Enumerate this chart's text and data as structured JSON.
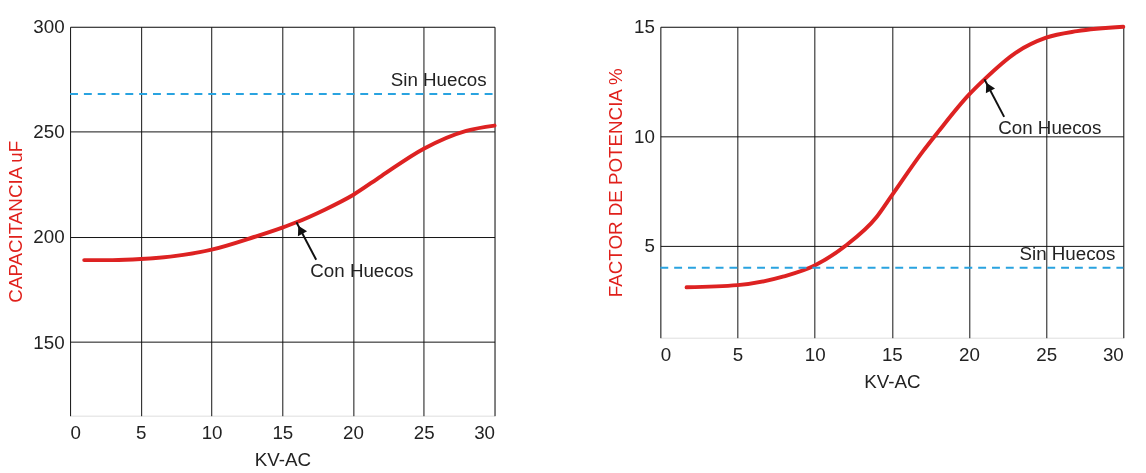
{
  "chart_data": [
    {
      "type": "line",
      "xlabel": "KV-AC",
      "ylabel": "CAPACITANCIA uF",
      "xlim": [
        0,
        30
      ],
      "ylim": [
        115,
        300
      ],
      "xticks": [
        0,
        5,
        10,
        15,
        20,
        25,
        30
      ],
      "yticks": [
        150,
        200,
        250,
        300
      ],
      "grid": true,
      "marker": "none",
      "line_style": "solid",
      "series": [
        {
          "color": "#dd2222",
          "x": [
            1,
            3,
            5,
            8,
            10,
            13,
            15,
            16,
            18,
            20,
            22,
            25,
            28,
            30
          ],
          "values": [
            189,
            189,
            189.5,
            191.5,
            194,
            200,
            204.5,
            207,
            213,
            220,
            229,
            242,
            250.5,
            253
          ]
        }
      ],
      "ref_lines": [
        {
          "axis": "y",
          "value": 268,
          "label": "Sin Huecos",
          "color": "#29a3e0",
          "line_style": "dashed"
        }
      ],
      "annotations": [
        {
          "text": "Con Huecos",
          "x": 16,
          "y": 207
        }
      ]
    },
    {
      "type": "line",
      "xlabel": "KV-AC",
      "ylabel": "FACTOR DE POTENCIA %",
      "xlim": [
        0,
        30
      ],
      "ylim": [
        0.8,
        15
      ],
      "xticks": [
        0,
        5,
        10,
        15,
        20,
        25,
        30
      ],
      "yticks": [
        5,
        10,
        15
      ],
      "grid": true,
      "marker": "none",
      "line_style": "solid",
      "series": [
        {
          "color": "#dd2222",
          "x": [
            1.7,
            5,
            8,
            10,
            12,
            14,
            15,
            17,
            18,
            20,
            21,
            23,
            25,
            27,
            30
          ],
          "values": [
            3.1,
            3.2,
            3.6,
            4.1,
            5.0,
            6.3,
            7.3,
            9.3,
            10.2,
            11.9,
            12.6,
            13.8,
            14.5,
            14.8,
            15
          ]
        }
      ],
      "ref_lines": [
        {
          "axis": "y",
          "value": 4.0,
          "label": "Sin Huecos",
          "color": "#29a3e0",
          "line_style": "dashed"
        }
      ],
      "annotations": [
        {
          "text": "Con Huecos",
          "x": 21,
          "y": 12.6
        }
      ]
    }
  ]
}
